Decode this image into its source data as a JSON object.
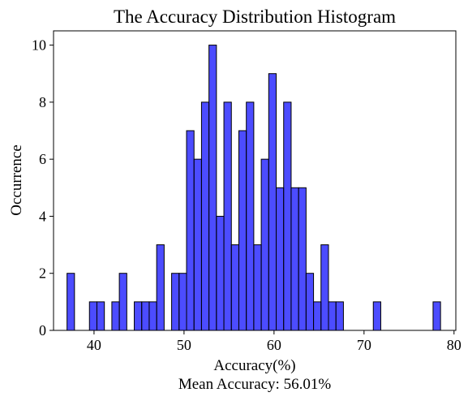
{
  "chart_data": {
    "type": "bar",
    "title": "The Accuracy Distribution Histogram",
    "xlabel": "Accuracy(%)",
    "ylabel": "Occurrence",
    "footnote": "Mean Accuracy: 56.01%",
    "xlim": [
      35.5,
      80.2
    ],
    "ylim": [
      0,
      10.5
    ],
    "xticks": [
      40,
      50,
      60,
      70,
      80
    ],
    "yticks": [
      0,
      2,
      4,
      6,
      8,
      10
    ],
    "bin_start": 37.0,
    "bin_width": 0.83,
    "counts": [
      2,
      0,
      0,
      1,
      1,
      0,
      1,
      2,
      0,
      1,
      1,
      1,
      3,
      0,
      2,
      2,
      7,
      6,
      8,
      10,
      4,
      8,
      3,
      7,
      8,
      3,
      6,
      9,
      5,
      8,
      5,
      5,
      2,
      1,
      3,
      1,
      1,
      0,
      0,
      0,
      0,
      1,
      0,
      0,
      0,
      0,
      0,
      0,
      0,
      1
    ],
    "bar_color": "#0000ff",
    "bar_alpha": 0.7,
    "edge_color": "#000000"
  }
}
